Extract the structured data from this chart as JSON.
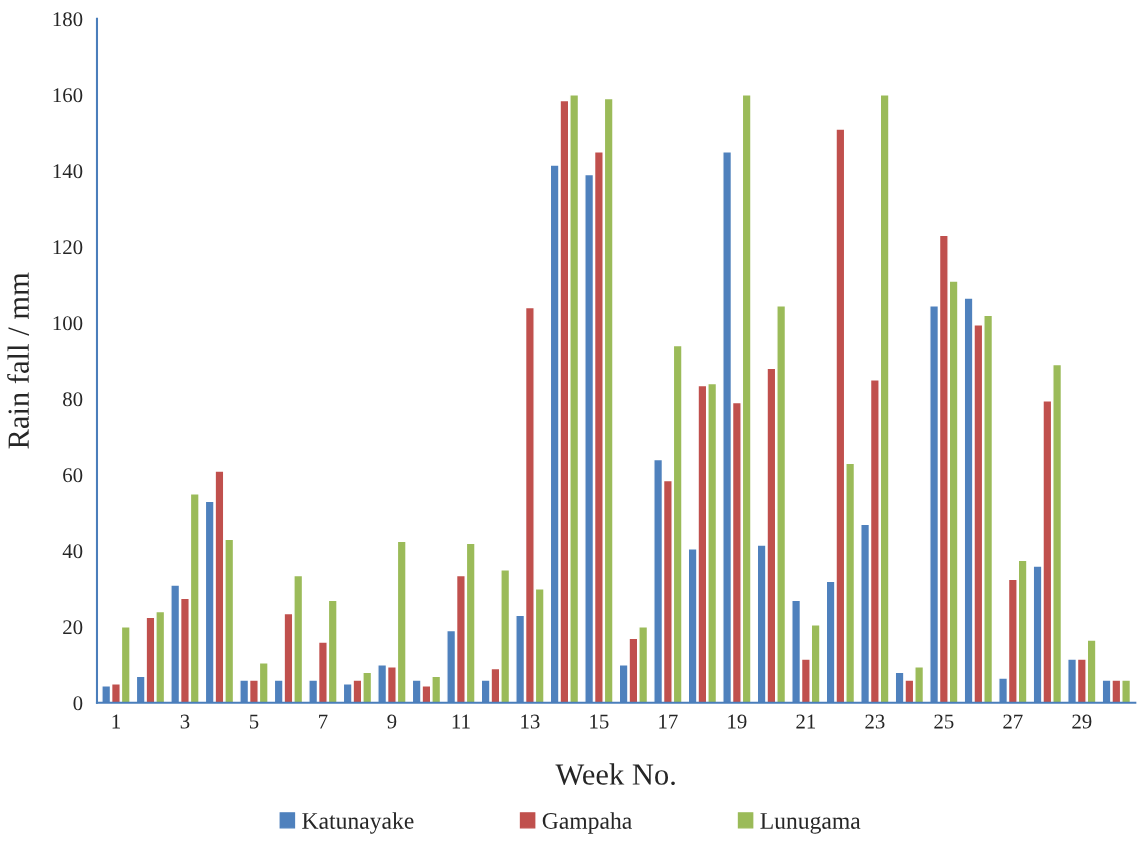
{
  "chart_data": {
    "type": "bar",
    "xlabel": "Week No.",
    "ylabel": "Rain fall / mm",
    "categories": [
      "1",
      null,
      "3",
      null,
      "5",
      null,
      "7",
      null,
      "9",
      null,
      "11",
      null,
      "13",
      null,
      "15",
      null,
      "17",
      null,
      "19",
      null,
      "21",
      null,
      "23",
      null,
      "25",
      null,
      "27",
      null,
      "29",
      null
    ],
    "series": [
      {
        "name": "Katunayake",
        "color": "#4f81bd",
        "values": [
          4.5,
          7,
          31,
          53,
          6,
          6,
          6,
          5,
          10,
          6,
          19,
          6,
          23,
          141.5,
          139,
          10,
          64,
          40.5,
          145,
          41.5,
          27,
          32,
          47,
          8,
          104.5,
          106.5,
          6.5,
          36,
          11.5,
          6
        ]
      },
      {
        "name": "Gampaha",
        "color": "#c0504d",
        "values": [
          5,
          22.5,
          27.5,
          61,
          6,
          23.5,
          16,
          6,
          9.5,
          4.5,
          33.5,
          9,
          104,
          158.5,
          145,
          17,
          58.5,
          83.5,
          79,
          88,
          11.5,
          151,
          85,
          6,
          123,
          99.5,
          32.5,
          79.5,
          11.5,
          6
        ]
      },
      {
        "name": "Lunugama",
        "color": "#9bbb59",
        "values": [
          20,
          24,
          55,
          43,
          10.5,
          33.5,
          27,
          8,
          42.5,
          7,
          42,
          35,
          30,
          160,
          159,
          20,
          94,
          84,
          160,
          104.5,
          20.5,
          63,
          160,
          9.5,
          111,
          102,
          37.5,
          89,
          16.5,
          6
        ]
      }
    ],
    "ylim": [
      0,
      180
    ],
    "yticks": [
      0,
      20,
      40,
      60,
      80,
      100,
      120,
      140,
      160,
      180
    ],
    "grid": false,
    "legend": "bottom"
  }
}
